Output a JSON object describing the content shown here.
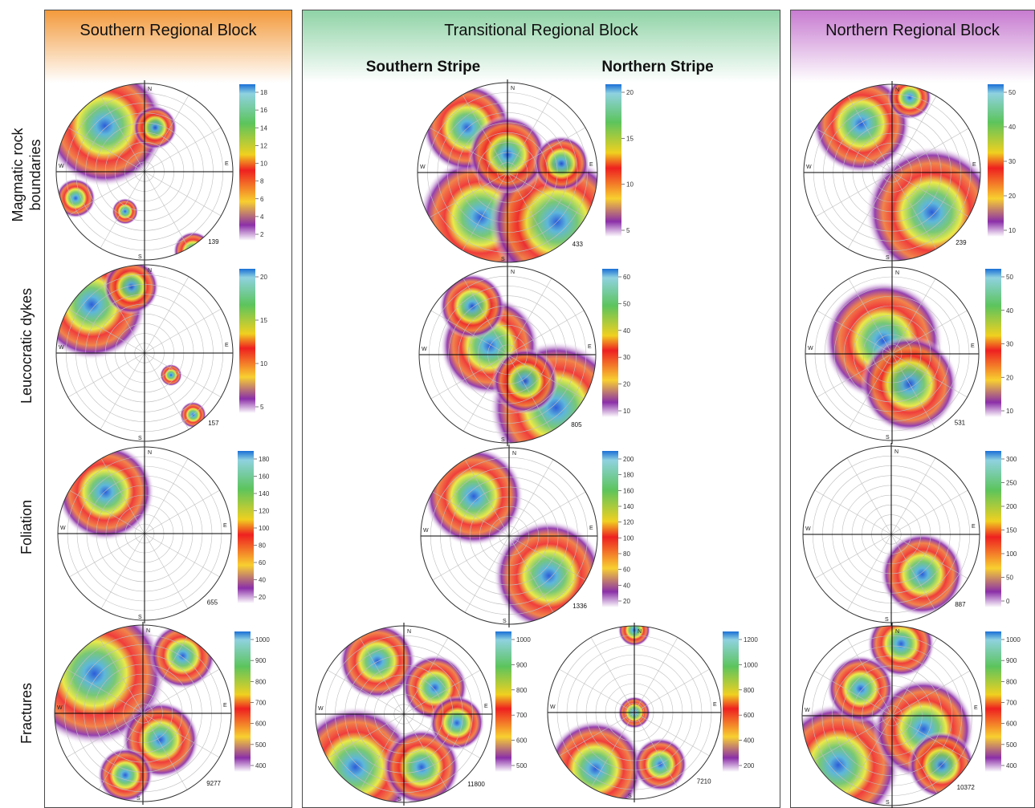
{
  "blocks": {
    "southern": {
      "title": "Southern Regional Block",
      "color": "#f39a3c"
    },
    "transitional": {
      "title": "Transitional Regional Block",
      "color": "#8fd3a6",
      "stripes": {
        "south": "Southern Stripe",
        "north": "Northern Stripe"
      }
    },
    "northern": {
      "title": "Northern Regional Block",
      "color": "#c77bd0"
    }
  },
  "rows": {
    "magmatic": "Magmatic rock boundaries",
    "dykes": "Leucocratic dykes",
    "foliation": "Foliation",
    "fractures": "Fractures"
  },
  "directions": {
    "n": "N",
    "s": "S",
    "e": "E",
    "w": "W"
  },
  "plots": [
    {
      "id": "s-mag",
      "count": "139",
      "ticks": [
        "18",
        "16",
        "14",
        "12",
        "10",
        "8",
        "6",
        "4",
        "2"
      ],
      "blobs": [
        [
          -0.45,
          -0.52,
          0.55
        ],
        [
          0.12,
          -0.5,
          0.2
        ],
        [
          -0.78,
          0.3,
          0.18
        ],
        [
          -0.22,
          0.45,
          0.12
        ],
        [
          0.55,
          0.9,
          0.18
        ]
      ]
    },
    {
      "id": "s-dyke",
      "count": "157",
      "ticks": [
        "20",
        "15",
        "10",
        "5"
      ],
      "blobs": [
        [
          -0.6,
          -0.55,
          0.5
        ],
        [
          -0.15,
          -0.75,
          0.25
        ],
        [
          0.3,
          0.25,
          0.1
        ],
        [
          0.55,
          0.7,
          0.12
        ]
      ]
    },
    {
      "id": "s-fol",
      "count": "655",
      "ticks": [
        "180",
        "160",
        "140",
        "120",
        "100",
        "80",
        "60",
        "40",
        "20"
      ],
      "blobs": [
        [
          -0.45,
          -0.48,
          0.45
        ]
      ]
    },
    {
      "id": "s-frac",
      "count": "9277",
      "ticks": [
        "1000",
        "900",
        "800",
        "700",
        "600",
        "500",
        "400"
      ],
      "blobs": [
        [
          -0.55,
          -0.45,
          0.65
        ],
        [
          0.2,
          0.3,
          0.35
        ],
        [
          0.45,
          -0.65,
          0.3
        ],
        [
          -0.2,
          0.7,
          0.25
        ]
      ]
    },
    {
      "id": "t-mag",
      "count": "433",
      "ticks": [
        "20",
        "15",
        "10",
        "5"
      ],
      "blobs": [
        [
          -0.3,
          0.5,
          0.55
        ],
        [
          0.55,
          0.55,
          0.6
        ],
        [
          -0.45,
          -0.5,
          0.4
        ],
        [
          0.0,
          -0.2,
          0.35
        ],
        [
          0.6,
          -0.1,
          0.25
        ]
      ]
    },
    {
      "id": "t-dyke",
      "count": "805",
      "ticks": [
        "60",
        "50",
        "40",
        "30",
        "20",
        "10"
      ],
      "blobs": [
        [
          0.55,
          0.6,
          0.6
        ],
        [
          -0.2,
          -0.1,
          0.45
        ],
        [
          -0.4,
          -0.55,
          0.3
        ],
        [
          0.2,
          0.3,
          0.3
        ]
      ]
    },
    {
      "id": "t-fol",
      "count": "1336",
      "ticks": [
        "200",
        "180",
        "160",
        "140",
        "120",
        "100",
        "80",
        "60",
        "40",
        "20"
      ],
      "blobs": [
        [
          -0.4,
          -0.45,
          0.45
        ],
        [
          0.45,
          0.45,
          0.5
        ]
      ]
    },
    {
      "id": "t-frac-s",
      "count": "11800",
      "ticks": [
        "1000",
        "900",
        "800",
        "700",
        "600",
        "500"
      ],
      "blobs": [
        [
          -0.55,
          0.6,
          0.55
        ],
        [
          0.2,
          0.6,
          0.35
        ],
        [
          -0.3,
          -0.6,
          0.35
        ],
        [
          0.35,
          -0.3,
          0.3
        ],
        [
          0.6,
          0.1,
          0.25
        ]
      ]
    },
    {
      "id": "t-frac-n",
      "count": "7210",
      "ticks": [
        "1200",
        "1000",
        "800",
        "600",
        "400",
        "200"
      ],
      "blobs": [
        [
          -0.45,
          0.65,
          0.45
        ],
        [
          0.0,
          0.0,
          0.15
        ],
        [
          0.3,
          0.6,
          0.25
        ],
        [
          0.0,
          -0.95,
          0.15
        ]
      ]
    },
    {
      "id": "n-mag",
      "count": "239",
      "ticks": [
        "50",
        "40",
        "30",
        "20",
        "10"
      ],
      "blobs": [
        [
          0.45,
          0.45,
          0.6
        ],
        [
          -0.35,
          -0.55,
          0.45
        ],
        [
          0.2,
          -0.85,
          0.2
        ]
      ]
    },
    {
      "id": "n-dyke",
      "count": "531",
      "ticks": [
        "50",
        "40",
        "30",
        "20",
        "10"
      ],
      "blobs": [
        [
          -0.1,
          -0.15,
          0.55
        ],
        [
          0.2,
          0.35,
          0.45
        ]
      ]
    },
    {
      "id": "n-fol",
      "count": "887",
      "ticks": [
        "300",
        "250",
        "200",
        "150",
        "100",
        "50",
        "0"
      ],
      "blobs": [
        [
          0.35,
          0.45,
          0.38
        ]
      ]
    },
    {
      "id": "n-frac",
      "count": "10372",
      "ticks": [
        "1000",
        "900",
        "800",
        "700",
        "600",
        "500",
        "400"
      ],
      "blobs": [
        [
          0.1,
          -0.8,
          0.3
        ],
        [
          -0.6,
          0.55,
          0.55
        ],
        [
          0.35,
          0.15,
          0.45
        ],
        [
          0.55,
          0.55,
          0.3
        ],
        [
          -0.35,
          -0.3,
          0.3
        ]
      ]
    }
  ]
}
